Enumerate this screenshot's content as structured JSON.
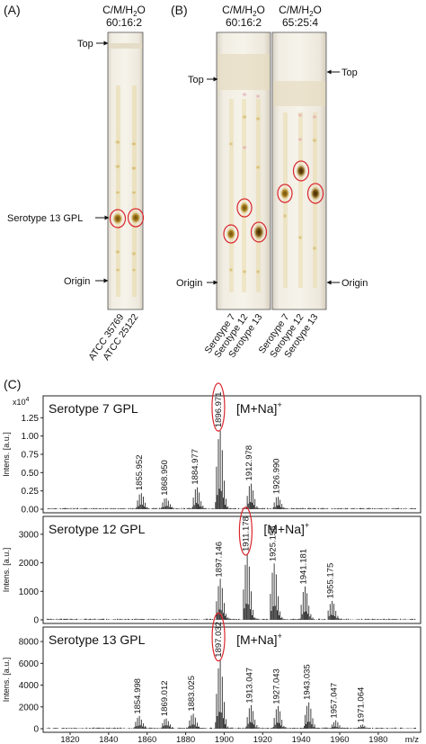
{
  "panel_a": {
    "letter": "(A)",
    "solvent_name": "C/M/H",
    "solvent_sub": "2",
    "solvent_tail": "O",
    "solvent_ratio": "60:16:2",
    "label_top": "Top",
    "label_gpl": "Serotype 13 GPL",
    "label_origin": "Origin",
    "lanes": [
      "ATCC 35769",
      "ATCC 25122"
    ]
  },
  "panel_b": {
    "letter": "(B)",
    "plate1": {
      "solvent_name": "C/M/H",
      "solvent_sub": "2",
      "solvent_tail": "O",
      "solvent_ratio": "60:16:2"
    },
    "plate2": {
      "solvent_name": "C/M/H",
      "solvent_sub": "2",
      "solvent_tail": "O",
      "solvent_ratio": "65:25:4"
    },
    "label_top_left": "Top",
    "label_top_right": "Top",
    "label_origin_left": "Origin",
    "label_origin_right": "Origin",
    "lanes_plate1": [
      "Serotype 7",
      "Serotype 12",
      "Serotype 13"
    ],
    "lanes_plate2": [
      "Serotype 7",
      "Serotype 12",
      "Serotype 13"
    ]
  },
  "panel_c": {
    "letter": "(C)",
    "x_unit": "m/z",
    "x_ticks": [
      1820,
      1840,
      1860,
      1880,
      1900,
      1920,
      1940,
      1960,
      1980
    ],
    "x_range": [
      1806,
      2002
    ],
    "ion_label": "[M+Na]",
    "ion_sup": "+",
    "spectra": [
      {
        "title": "Serotype 7 GPL",
        "ylabel": "Intens. [a.u.]",
        "exp_label": "x10",
        "exp_sup": "4",
        "y_ticks": [
          "0.00",
          "0.25",
          "0.50",
          "0.75",
          "1.00",
          "1.25"
        ],
        "y_max": 1.5,
        "circled": "1896.971",
        "peaks": [
          {
            "mz": 1855.952,
            "label": "1855.952",
            "h": 0.22
          },
          {
            "mz": 1868.95,
            "label": "1868.950",
            "h": 0.15
          },
          {
            "mz": 1884.977,
            "label": "1884.977",
            "h": 0.3
          },
          {
            "mz": 1896.971,
            "label": "1896.971",
            "h": 1.08
          },
          {
            "mz": 1912.978,
            "label": "1912.978",
            "h": 0.35
          },
          {
            "mz": 1926.99,
            "label": "1926.990",
            "h": 0.17
          }
        ]
      },
      {
        "title": "Serotype 12 GPL",
        "ylabel": "Intens. [a.u.]",
        "exp_label": "",
        "exp_sup": "",
        "y_ticks": [
          "0",
          "1000",
          "2000",
          "3000"
        ],
        "y_max": 3500,
        "circled": "1911.178",
        "peaks": [
          {
            "mz": 1897.146,
            "label": "1897.146",
            "h": 1400
          },
          {
            "mz": 1911.178,
            "label": "1911.178",
            "h": 2300
          },
          {
            "mz": 1925.158,
            "label": "1925.158",
            "h": 1950
          },
          {
            "mz": 1941.181,
            "label": "1941.181",
            "h": 1150
          },
          {
            "mz": 1955.175,
            "label": "1955.175",
            "h": 650
          }
        ]
      },
      {
        "title": "Serotype 13 GPL",
        "ylabel": "Intens. [a.u.]",
        "exp_label": "",
        "exp_sup": "",
        "y_ticks": [
          "0",
          "2000",
          "4000",
          "6000",
          "8000"
        ],
        "y_max": 9000,
        "circled": "1897.032",
        "peaks": [
          {
            "mz": 1854.998,
            "label": "1854.998",
            "h": 1100
          },
          {
            "mz": 1869.012,
            "label": "1869.012",
            "h": 900
          },
          {
            "mz": 1883.025,
            "label": "1883.025",
            "h": 1350
          },
          {
            "mz": 1897.032,
            "label": "1897.032",
            "h": 6300
          },
          {
            "mz": 1913.047,
            "label": "1913.047",
            "h": 2100
          },
          {
            "mz": 1927.043,
            "label": "1927.043",
            "h": 2000
          },
          {
            "mz": 1943.035,
            "label": "1943.035",
            "h": 2400
          },
          {
            "mz": 1957.047,
            "label": "1957.047",
            "h": 700
          },
          {
            "mz": 1971.064,
            "label": "1971.064",
            "h": 300
          }
        ]
      }
    ]
  }
}
